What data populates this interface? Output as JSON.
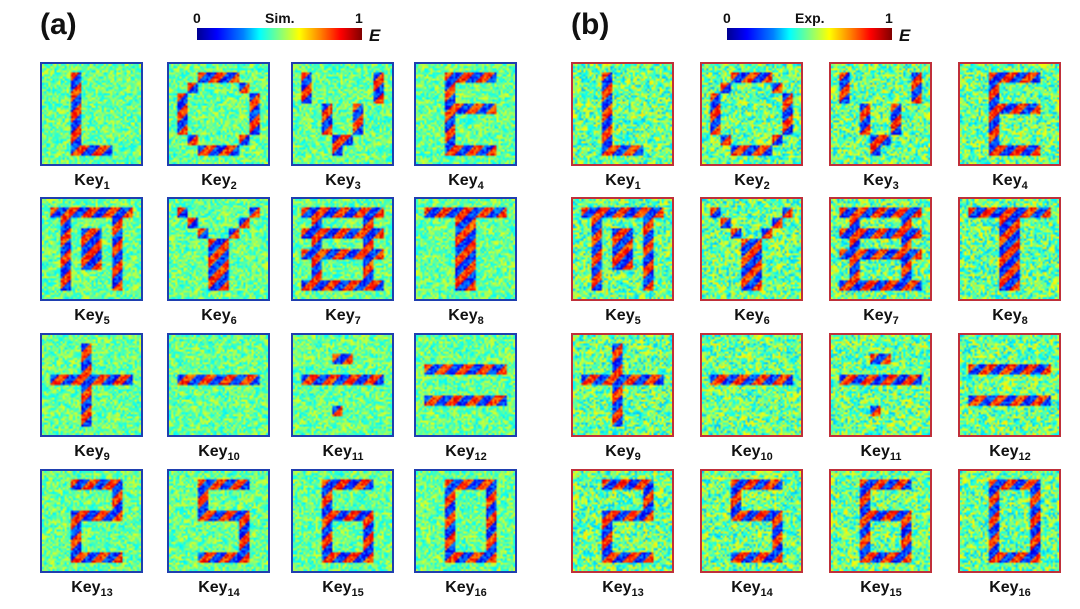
{
  "panels": [
    {
      "label": "(a)",
      "colorbar": {
        "min": "0",
        "title": "Sim.",
        "max": "1",
        "quantity": "E"
      },
      "frame_color": "#1f3fb0"
    },
    {
      "label": "(b)",
      "colorbar": {
        "min": "0",
        "title": "Exp.",
        "max": "1",
        "quantity": "E"
      },
      "frame_color": "#c0303a"
    }
  ],
  "key_prefix": "Key",
  "keys": [
    "1",
    "2",
    "3",
    "4",
    "5",
    "6",
    "7",
    "8",
    "9",
    "10",
    "11",
    "12",
    "13",
    "14",
    "15",
    "16"
  ],
  "colormap": "jet"
}
